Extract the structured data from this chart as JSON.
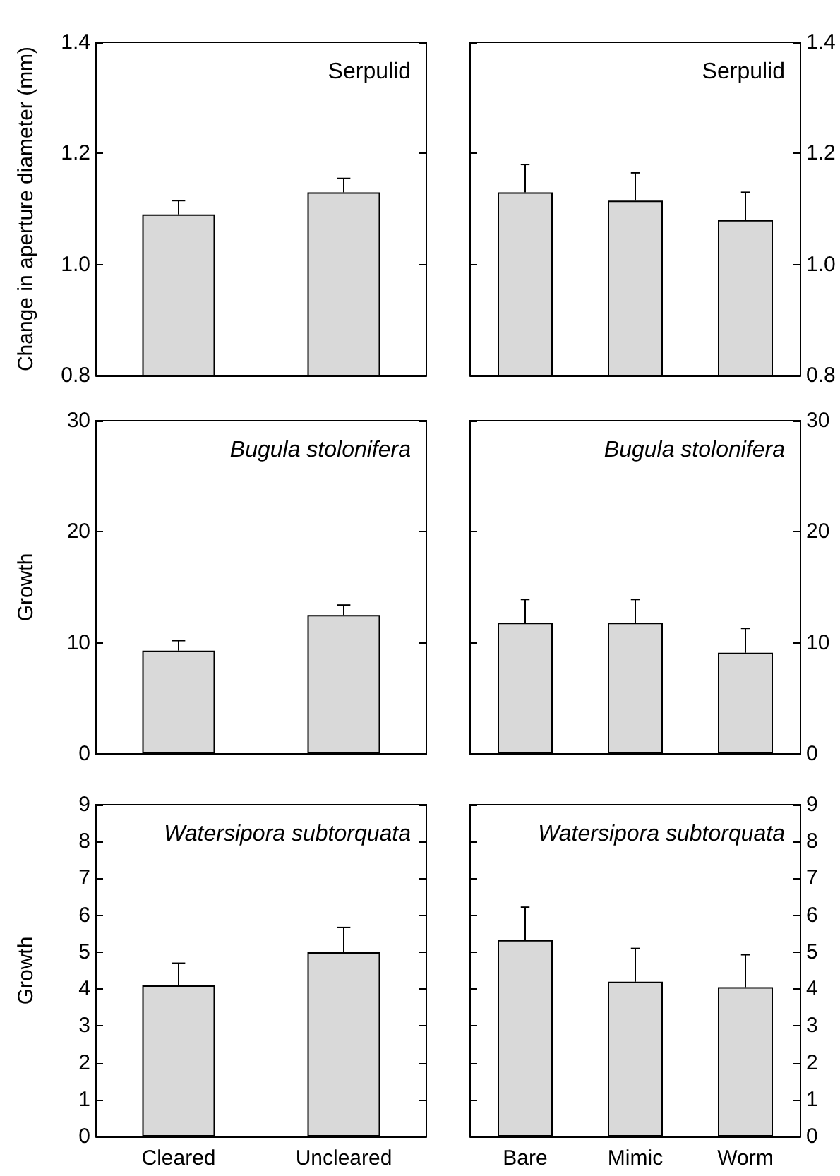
{
  "chart_data": [
    {
      "type": "bar",
      "title": "Serpulid",
      "ylabel": "Change in aperture diameter (mm)",
      "categories": [
        null,
        null
      ],
      "values": [
        1.09,
        1.13
      ],
      "errors": [
        [
          1.09,
          1.115
        ],
        [
          1.13,
          1.155
        ]
      ],
      "color": "#d9d9d9",
      "ylim": [
        0.8,
        1.4
      ],
      "yticks": [
        0.8,
        {
          "value": 1.0,
          "label": "1.0"
        },
        1.2,
        1.4
      ],
      "tick_labels": "y",
      "grid": false
    },
    {
      "type": "bar",
      "title": "Serpulid",
      "categories": [
        null,
        null,
        null
      ],
      "values": [
        1.13,
        1.115,
        1.08
      ],
      "errors": [
        [
          1.13,
          1.18
        ],
        [
          1.115,
          1.165
        ],
        [
          1.08,
          1.13
        ]
      ],
      "color": "#d9d9d9",
      "ylim": [
        0.8,
        1.4
      ],
      "yticks": [
        0.8,
        {
          "value": 1.0,
          "label": "1.0"
        },
        1.2,
        1.4
      ],
      "tick_labels": "y",
      "grid": false
    },
    {
      "type": "bar",
      "title": "Bugula stolonifera",
      "ylabel": "Growth",
      "categories": [
        null,
        null
      ],
      "values": [
        9.3,
        12.5
      ],
      "errors": [
        [
          9.3,
          10.2
        ],
        [
          12.5,
          13.4
        ]
      ],
      "color": "#d9d9d9",
      "ylim": [
        0,
        30
      ],
      "yticks": [
        0,
        10,
        20,
        30
      ],
      "tick_labels": "y",
      "grid": false
    },
    {
      "type": "bar",
      "title": "Bugula stolonifera",
      "categories": [
        null,
        null,
        null
      ],
      "values": [
        11.8,
        11.8,
        9.1
      ],
      "errors": [
        [
          11.8,
          13.9
        ],
        [
          11.8,
          13.9
        ],
        [
          9.1,
          11.3
        ]
      ],
      "color": "#d9d9d9",
      "ylim": [
        0,
        30
      ],
      "yticks": [
        0,
        10,
        20,
        30
      ],
      "tick_labels": "y",
      "grid": false
    },
    {
      "type": "bar",
      "title": "Watersipora subtorquata",
      "ylabel": "Growth",
      "categories": [
        "Cleared",
        "Uncleared"
      ],
      "values": [
        4.1,
        5.0
      ],
      "errors": [
        [
          4.1,
          4.7
        ],
        [
          5.0,
          5.67
        ]
      ],
      "color": "#d9d9d9",
      "ylim": [
        0,
        9
      ],
      "yticks": [
        0,
        1,
        2,
        3,
        4,
        5,
        6,
        7,
        8,
        9
      ],
      "grid": false
    },
    {
      "type": "bar",
      "title": "Watersipora subtorquata",
      "categories": [
        "Bare",
        "Mimic",
        "Worm"
      ],
      "values": [
        5.33,
        4.2,
        4.05
      ],
      "errors": [
        [
          5.33,
          6.22
        ],
        [
          4.2,
          5.1
        ],
        [
          4.05,
          4.93
        ]
      ],
      "color": "#d9d9d9",
      "ylim": [
        0,
        9
      ],
      "yticks": [
        0,
        1,
        2,
        3,
        4,
        5,
        6,
        7,
        8,
        9
      ],
      "grid": false
    }
  ]
}
